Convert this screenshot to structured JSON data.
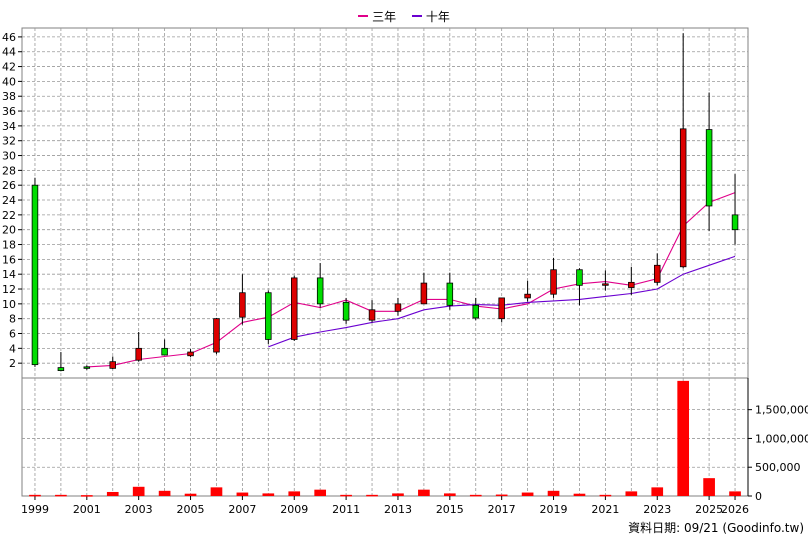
{
  "legend": [
    {
      "label": "三年",
      "color": "#e0008a"
    },
    {
      "label": "十年",
      "color": "#6a00d0"
    }
  ],
  "footer": {
    "date_label": "資料日期: 09/21",
    "source": "(Goodinfo.tw)"
  },
  "chart_data": {
    "type": "candlestick",
    "x_tick_labels": [
      "1999",
      "2001",
      "2003",
      "2005",
      "2007",
      "2009",
      "2011",
      "2013",
      "2015",
      "2017",
      "2019",
      "2021",
      "2023",
      "2025",
      "2026"
    ],
    "price_ticks": [
      2,
      4,
      6,
      8,
      10,
      12,
      14,
      16,
      18,
      20,
      22,
      24,
      26,
      28,
      30,
      32,
      34,
      36,
      38,
      40,
      42,
      44,
      46
    ],
    "volume_ticks": [
      "0",
      "500,000",
      "1,000,000",
      "1,500,000"
    ],
    "price_range": [
      0,
      47.2
    ],
    "volume_range": [
      0,
      2050000
    ],
    "grid": true,
    "colors": {
      "up": "#dd0000",
      "down": "#00dd00",
      "volume": "#ff0000",
      "outline": "#000000",
      "grid": "#999999"
    },
    "candles": [
      {
        "year": 1999,
        "open": 26.0,
        "high": 27.0,
        "low": 1.5,
        "close": 1.8
      },
      {
        "year": 2000,
        "open": 1.4,
        "high": 3.5,
        "low": 0.9,
        "close": 1.0
      },
      {
        "year": 2001,
        "open": 1.5,
        "high": 1.7,
        "low": 1.1,
        "close": 1.3
      },
      {
        "year": 2002,
        "open": 1.3,
        "high": 2.9,
        "low": 1.2,
        "close": 2.2
      },
      {
        "year": 2003,
        "open": 2.4,
        "high": 6.2,
        "low": 2.2,
        "close": 4.0
      },
      {
        "year": 2004,
        "open": 4.0,
        "high": 5.2,
        "low": 3.1,
        "close": 3.1
      },
      {
        "year": 2005,
        "open": 3.0,
        "high": 3.9,
        "low": 2.8,
        "close": 3.5
      },
      {
        "year": 2006,
        "open": 3.5,
        "high": 8.1,
        "low": 3.2,
        "close": 8.0
      },
      {
        "year": 2007,
        "open": 8.2,
        "high": 14.0,
        "low": 7.2,
        "close": 11.5
      },
      {
        "year": 2008,
        "open": 11.5,
        "high": 11.8,
        "low": 4.6,
        "close": 5.2
      },
      {
        "year": 2009,
        "open": 5.2,
        "high": 13.8,
        "low": 5.0,
        "close": 13.5
      },
      {
        "year": 2010,
        "open": 13.5,
        "high": 15.5,
        "low": 9.5,
        "close": 10.0
      },
      {
        "year": 2011,
        "open": 10.2,
        "high": 10.8,
        "low": 7.3,
        "close": 7.8
      },
      {
        "year": 2012,
        "open": 7.8,
        "high": 10.5,
        "low": 7.5,
        "close": 9.2
      },
      {
        "year": 2013,
        "open": 9.0,
        "high": 10.8,
        "low": 8.4,
        "close": 10.0
      },
      {
        "year": 2014,
        "open": 10.0,
        "high": 14.2,
        "low": 10.0,
        "close": 12.8
      },
      {
        "year": 2015,
        "open": 12.8,
        "high": 14.2,
        "low": 9.2,
        "close": 9.8
      },
      {
        "year": 2016,
        "open": 9.8,
        "high": 10.8,
        "low": 7.8,
        "close": 8.1
      },
      {
        "year": 2017,
        "open": 8.0,
        "high": 10.8,
        "low": 7.5,
        "close": 10.8
      },
      {
        "year": 2018,
        "open": 10.8,
        "high": 13.1,
        "low": 10.3,
        "close": 11.3
      },
      {
        "year": 2019,
        "open": 11.3,
        "high": 16.2,
        "low": 10.8,
        "close": 14.6
      },
      {
        "year": 2020,
        "open": 14.6,
        "high": 14.8,
        "low": 9.8,
        "close": 12.5
      },
      {
        "year": 2021,
        "open": 12.5,
        "high": 14.5,
        "low": 11.8,
        "close": 12.7
      },
      {
        "year": 2022,
        "open": 12.2,
        "high": 15.0,
        "low": 11.2,
        "close": 12.9
      },
      {
        "year": 2023,
        "open": 12.9,
        "high": 16.8,
        "low": 12.5,
        "close": 15.2
      },
      {
        "year": 2024,
        "open": 15.0,
        "high": 46.5,
        "low": 14.8,
        "close": 33.6
      },
      {
        "year": 2025,
        "open": 33.5,
        "high": 38.5,
        "low": 19.8,
        "close": 23.2
      },
      {
        "year": 2026,
        "open": 22.0,
        "high": 27.5,
        "low": 18.0,
        "close": 20.0
      }
    ],
    "volume": [
      {
        "year": 1999,
        "value": 20000
      },
      {
        "year": 2000,
        "value": 20000
      },
      {
        "year": 2001,
        "value": 15000
      },
      {
        "year": 2002,
        "value": 70000
      },
      {
        "year": 2003,
        "value": 160000
      },
      {
        "year": 2004,
        "value": 90000
      },
      {
        "year": 2005,
        "value": 40000
      },
      {
        "year": 2006,
        "value": 150000
      },
      {
        "year": 2007,
        "value": 60000
      },
      {
        "year": 2008,
        "value": 45000
      },
      {
        "year": 2009,
        "value": 80000
      },
      {
        "year": 2010,
        "value": 110000
      },
      {
        "year": 2011,
        "value": 20000
      },
      {
        "year": 2012,
        "value": 20000
      },
      {
        "year": 2013,
        "value": 45000
      },
      {
        "year": 2014,
        "value": 110000
      },
      {
        "year": 2015,
        "value": 45000
      },
      {
        "year": 2016,
        "value": 20000
      },
      {
        "year": 2017,
        "value": 25000
      },
      {
        "year": 2018,
        "value": 60000
      },
      {
        "year": 2019,
        "value": 90000
      },
      {
        "year": 2020,
        "value": 40000
      },
      {
        "year": 2021,
        "value": 20000
      },
      {
        "year": 2022,
        "value": 80000
      },
      {
        "year": 2023,
        "value": 150000
      },
      {
        "year": 2024,
        "value": 2000000
      },
      {
        "year": 2025,
        "value": 310000
      },
      {
        "year": 2026,
        "value": 80000
      }
    ],
    "series": [
      {
        "name": "三年",
        "color": "#e0008a",
        "points": [
          [
            2001,
            1.5
          ],
          [
            2002,
            1.7
          ],
          [
            2003,
            2.5
          ],
          [
            2004,
            2.9
          ],
          [
            2005,
            3.3
          ],
          [
            2006,
            4.8
          ],
          [
            2007,
            7.5
          ],
          [
            2008,
            8.2
          ],
          [
            2009,
            10.2
          ],
          [
            2010,
            9.5
          ],
          [
            2011,
            10.5
          ],
          [
            2012,
            9.0
          ],
          [
            2013,
            9.0
          ],
          [
            2014,
            10.6
          ],
          [
            2015,
            10.6
          ],
          [
            2016,
            9.7
          ],
          [
            2017,
            9.3
          ],
          [
            2018,
            10.0
          ],
          [
            2019,
            12.0
          ],
          [
            2020,
            12.7
          ],
          [
            2021,
            13.0
          ],
          [
            2022,
            12.5
          ],
          [
            2023,
            13.4
          ],
          [
            2024,
            20.5
          ],
          [
            2025,
            23.7
          ],
          [
            2026,
            25.0
          ]
        ]
      },
      {
        "name": "十年",
        "color": "#6a00d0",
        "points": [
          [
            2008,
            4.2
          ],
          [
            2009,
            5.5
          ],
          [
            2010,
            6.2
          ],
          [
            2011,
            6.8
          ],
          [
            2012,
            7.5
          ],
          [
            2013,
            8.0
          ],
          [
            2014,
            9.2
          ],
          [
            2015,
            9.7
          ],
          [
            2016,
            9.9
          ],
          [
            2017,
            9.8
          ],
          [
            2018,
            10.2
          ],
          [
            2019,
            10.4
          ],
          [
            2020,
            10.6
          ],
          [
            2021,
            11.0
          ],
          [
            2022,
            11.4
          ],
          [
            2023,
            12.0
          ],
          [
            2024,
            14.0
          ],
          [
            2025,
            15.2
          ],
          [
            2026,
            16.4
          ]
        ]
      }
    ]
  }
}
